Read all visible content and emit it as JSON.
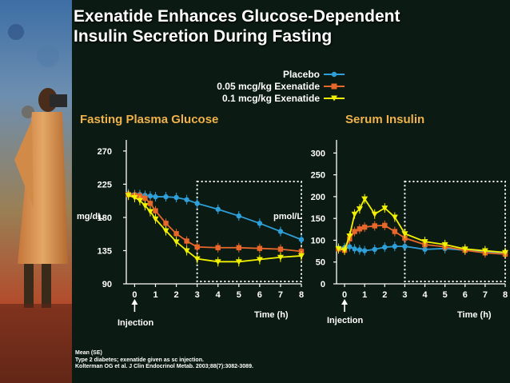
{
  "slide": {
    "title_line1": "Exenatide Enhances Glucose-Dependent",
    "title_line2": "Insulin Secretion During Fasting",
    "colors": {
      "background": "#0b1a12",
      "title": "#ffffff",
      "panel_title": "#f0b24a",
      "axis": "#ffffff",
      "dotted_box": "#ffffff"
    },
    "artwork_icon": "painted-figure-in-coat",
    "footnotes": [
      "Mean (SE)",
      "Type 2 diabetes; exenatide given as sc injection.",
      "Kolterman OG et al. J Clin Endocrinol Metab. 2003;88(7):3082-3089."
    ]
  },
  "legend": [
    {
      "label": "Placebo",
      "color": "#2f9fd9",
      "marker": "circle"
    },
    {
      "label": "0.05 mcg/kg Exenatide",
      "color": "#e8672a",
      "marker": "square"
    },
    {
      "label": "0.1 mcg/kg Exenatide",
      "color": "#f2f200",
      "marker": "triangle-down"
    }
  ],
  "chart_data": [
    {
      "type": "line",
      "title": "Fasting Plasma Glucose",
      "ylabel": "mg/dL",
      "xlabel": "Time (h)",
      "annotation": "Injection",
      "annotation_x": 0,
      "ylim": [
        90,
        285
      ],
      "xlim": [
        -0.4,
        8
      ],
      "yticks": [
        90,
        135,
        180,
        225,
        270
      ],
      "xticks": [
        0,
        1,
        2,
        3,
        4,
        5,
        6,
        7,
        8
      ],
      "highlight_box_x": [
        3,
        8
      ],
      "series": [
        {
          "name": "Placebo",
          "color": "#2f9fd9",
          "x": [
            -0.3,
            0,
            0.25,
            0.5,
            0.75,
            1,
            1.5,
            2,
            2.5,
            3,
            4,
            5,
            6,
            7,
            8
          ],
          "y": [
            212,
            211,
            211,
            210,
            209,
            208,
            208,
            207,
            204,
            199,
            191,
            182,
            172,
            161,
            150
          ]
        },
        {
          "name": "0.05 mcg/kg Exenatide",
          "color": "#e8672a",
          "x": [
            -0.3,
            0,
            0.25,
            0.5,
            0.75,
            1,
            1.5,
            2,
            2.5,
            3,
            4,
            5,
            6,
            7,
            8
          ],
          "y": [
            211,
            210,
            209,
            206,
            199,
            189,
            172,
            158,
            148,
            140,
            139,
            139,
            138,
            137,
            134
          ]
        },
        {
          "name": "0.1 mcg/kg Exenatide",
          "color": "#f2f200",
          "x": [
            -0.3,
            0,
            0.25,
            0.5,
            0.75,
            1,
            1.5,
            2,
            2.5,
            3,
            4,
            5,
            6,
            7,
            8
          ],
          "y": [
            210,
            207,
            203,
            196,
            188,
            178,
            162,
            147,
            135,
            124,
            120,
            120,
            123,
            126,
            128
          ]
        }
      ]
    },
    {
      "type": "line",
      "title": "Serum Insulin",
      "ylabel": "pmol/L",
      "xlabel": "Time (h)",
      "annotation": "Injection",
      "annotation_x": 0,
      "ylim": [
        0,
        330
      ],
      "xlim": [
        -0.4,
        8
      ],
      "yticks": [
        0,
        50,
        100,
        150,
        200,
        250,
        300
      ],
      "xticks": [
        0,
        1,
        2,
        3,
        4,
        5,
        6,
        7,
        8
      ],
      "highlight_box_x": [
        3,
        8
      ],
      "series": [
        {
          "name": "Placebo",
          "color": "#2f9fd9",
          "x": [
            -0.3,
            0,
            0.25,
            0.5,
            0.75,
            1,
            1.5,
            2,
            2.5,
            3,
            4,
            5,
            6,
            7,
            8
          ],
          "y": [
            82,
            83,
            85,
            80,
            78,
            76,
            79,
            84,
            86,
            86,
            79,
            81,
            77,
            74,
            71
          ]
        },
        {
          "name": "0.05 mcg/kg Exenatide",
          "color": "#e8672a",
          "x": [
            -0.3,
            0,
            0.25,
            0.5,
            0.75,
            1,
            1.5,
            2,
            2.5,
            3,
            4,
            5,
            6,
            7,
            8
          ],
          "y": [
            80,
            77,
            103,
            120,
            126,
            130,
            133,
            134,
            120,
            105,
            90,
            85,
            77,
            71,
            68
          ]
        },
        {
          "name": "0.1 mcg/kg Exenatide",
          "color": "#f2f200",
          "x": [
            -0.3,
            0,
            0.25,
            0.5,
            0.75,
            1,
            1.5,
            2,
            2.5,
            3,
            4,
            5,
            6,
            7,
            8
          ],
          "y": [
            81,
            78,
            110,
            160,
            172,
            195,
            160,
            174,
            153,
            115,
            97,
            90,
            80,
            76,
            72
          ]
        }
      ]
    }
  ]
}
